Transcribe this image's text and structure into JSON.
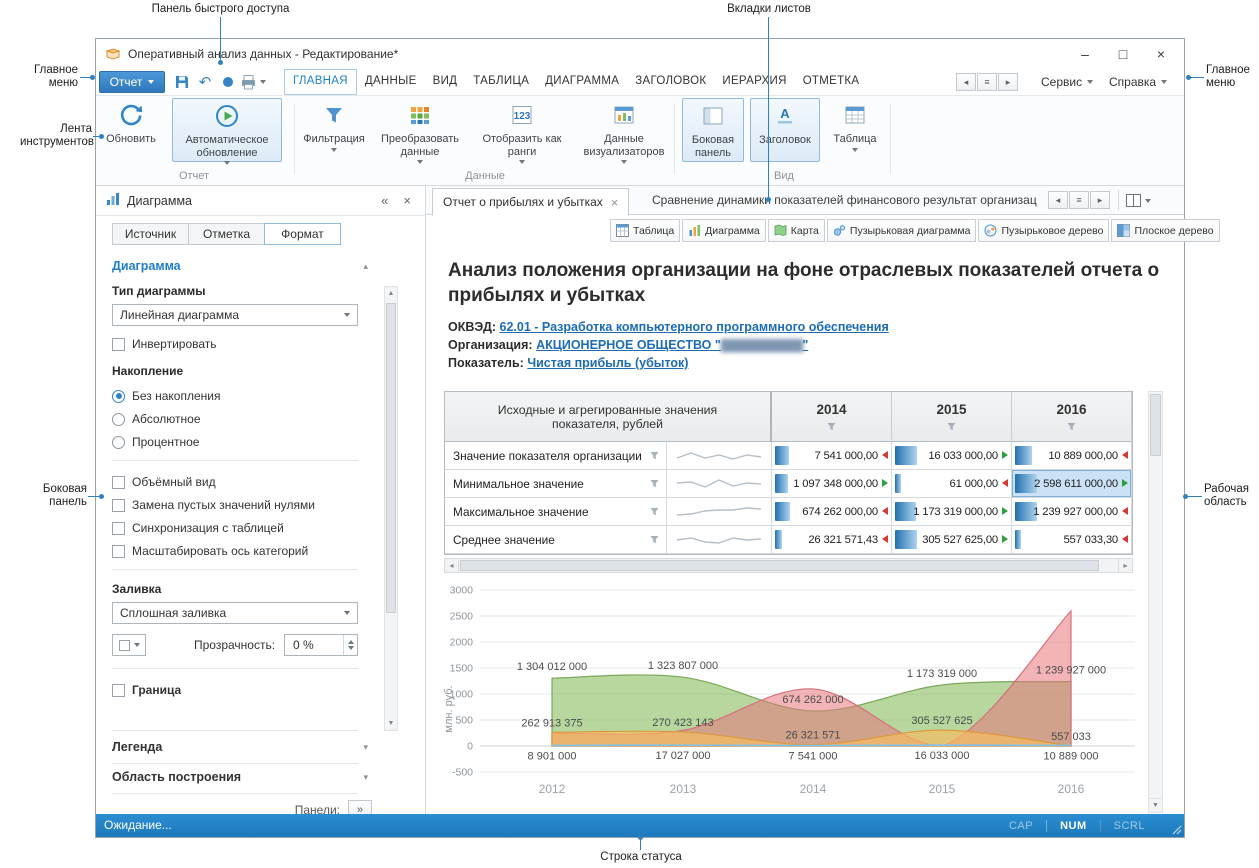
{
  "callouts": {
    "quick_access": "Панель быстрого доступа",
    "sheet_tabs": "Вкладки листов",
    "main_menu_left": "Главное меню",
    "ribbon": "Лента инструментов",
    "side_panel": "Боковая панель",
    "main_menu_right": "Главное меню",
    "work_area": "Рабочая область",
    "status_bar": "Строка статуса"
  },
  "window": {
    "title": "Оперативный анализ данных - Редактирование*",
    "minimize": "–",
    "maximize": "□",
    "close": "×"
  },
  "menu": {
    "report_button": "Отчет",
    "tabs": [
      "ГЛАВНАЯ",
      "ДАННЫЕ",
      "ВИД",
      "ТАБЛИЦА",
      "ДИАГРАММА",
      "ЗАГОЛОВОК",
      "ИЕРАРХИЯ",
      "ОТМЕТКА"
    ],
    "service": "Сервис",
    "help": "Справка"
  },
  "ribbon": {
    "refresh": "Обновить",
    "auto_refresh": "Автоматическое обновление",
    "group_report": "Отчет",
    "filtering": "Фильтрация",
    "transform_data": "Преобразовать данные",
    "show_as_ranks": "Отобразить как ранги",
    "visualizer_data": "Данные визуализаторов",
    "group_data": "Данные",
    "side_panel": "Боковая панель",
    "header": "Заголовок",
    "table": "Таблица",
    "group_view": "Вид"
  },
  "side_panel": {
    "title": "Диаграмма",
    "tab_source": "Источник",
    "tab_mark": "Отметка",
    "tab_format": "Формат",
    "section_chart": "Диаграмма",
    "chart_type_label": "Тип диаграммы",
    "chart_type_value": "Линейная диаграмма",
    "invert": "Инвертировать",
    "stacking_label": "Накопление",
    "stack_none": "Без накопления",
    "stack_absolute": "Абсолютное",
    "stack_percent": "Процентное",
    "volume_view": "Объёмный вид",
    "replace_empty": "Замена пустых значений нулями",
    "sync_with_table": "Синхронизация с таблицей",
    "scale_category_axis": "Масштабировать ось категорий",
    "fill_label": "Заливка",
    "fill_value": "Сплошная заливка",
    "transparency_label": "Прозрачность:",
    "transparency_value": "0 %",
    "border": "Граница",
    "section_legend": "Легенда",
    "section_plot_area": "Область построения",
    "panels_label": "Панели:"
  },
  "sheet_tabs": {
    "tab1": "Отчет о прибылях и убытках",
    "tab2": "Сравнение динамики показателей финансового результат организации и"
  },
  "visualizers": [
    {
      "label": "Таблица"
    },
    {
      "label": "Диаграмма"
    },
    {
      "label": "Карта"
    },
    {
      "label": "Пузырьковая диаграмма"
    },
    {
      "label": "Пузырьковое дерево"
    },
    {
      "label": "Плоское дерево"
    }
  ],
  "report": {
    "title": "Анализ положения организации на фоне отраслевых показателей отчета о прибылях и убытках",
    "okved_label": "ОКВЭД:",
    "okved_value": "62.01 - Разработка компьютерного программного обеспечения",
    "org_label": "Организация:",
    "org_value_prefix": "АКЦИОНЕРНОЕ ОБЩЕСТВО \"",
    "org_value_redacted": "████████████",
    "org_value_suffix": "\"",
    "indicator_label": "Показатель:",
    "indicator_value": "Чистая прибыль (убыток)"
  },
  "table": {
    "header": "Исходные и агрегированные значения показателя, рублей",
    "years": [
      "2014",
      "2015",
      "2016"
    ],
    "rows": [
      {
        "label": "Значение показателя организации",
        "values": [
          "7 541 000,00",
          "16 033 000,00",
          "10 889 000,00"
        ],
        "trends": [
          "down",
          "up",
          "down"
        ],
        "selected": -1
      },
      {
        "label": "Минимальное значение",
        "values": [
          "1 097 348 000,00",
          "61 000,00",
          "2 598 611 000,00"
        ],
        "trends": [
          "up",
          "down",
          "up"
        ],
        "selected": 2
      },
      {
        "label": "Максимальное значение",
        "values": [
          "674 262 000,00",
          "1 173 319 000,00",
          "1 239 927 000,00"
        ],
        "trends": [
          "down",
          "up",
          "down"
        ],
        "selected": -1
      },
      {
        "label": "Среднее значение",
        "values": [
          "26 321 571,43",
          "305 527 625,00",
          "557 033,30"
        ],
        "trends": [
          "down",
          "up",
          "down"
        ],
        "selected": -1
      }
    ]
  },
  "chart_data": {
    "type": "area",
    "x": [
      "2012",
      "2013",
      "2014",
      "2015",
      "2016"
    ],
    "ylabel": "млн. руб.",
    "ylim": [
      -500,
      3000
    ],
    "yticks": [
      3000,
      2500,
      2000,
      1500,
      1000,
      500,
      0,
      -500
    ],
    "grid": true,
    "legend": "none",
    "series": [
      {
        "name": "Максимальное значение",
        "style": "green-area",
        "values": [
          1304012000,
          1323807000,
          674262000,
          1173319000,
          1239927000
        ],
        "point_labels": [
          "1 304 012 000",
          "1 323 807 000",
          "674 262 000",
          "1 173 319 000",
          "1 239 927 000"
        ]
      },
      {
        "name": "Минимальное значение",
        "style": "pink-area",
        "values": [
          250000000,
          300000000,
          1097348000,
          61000,
          2598611000
        ],
        "point_labels": []
      },
      {
        "name": "Среднее значение",
        "style": "orange-area",
        "values": [
          262913375,
          270423143,
          26321571,
          305527625,
          557033
        ],
        "point_labels": [
          "262 913 375",
          "270 423 143",
          "26 321 571",
          "305 527 625",
          "557 033"
        ]
      },
      {
        "name": "Значение показателя организации",
        "style": "blue-line",
        "values": [
          8901000,
          17027000,
          7541000,
          16033000,
          10889000
        ],
        "point_labels": [
          "8 901 000",
          "17 027 000",
          "7 541 000",
          "16 033 000",
          "10 889 000"
        ]
      }
    ]
  },
  "status": {
    "text": "Ожидание...",
    "cap": "CAP",
    "num": "NUM",
    "scrl": "SCRL"
  }
}
